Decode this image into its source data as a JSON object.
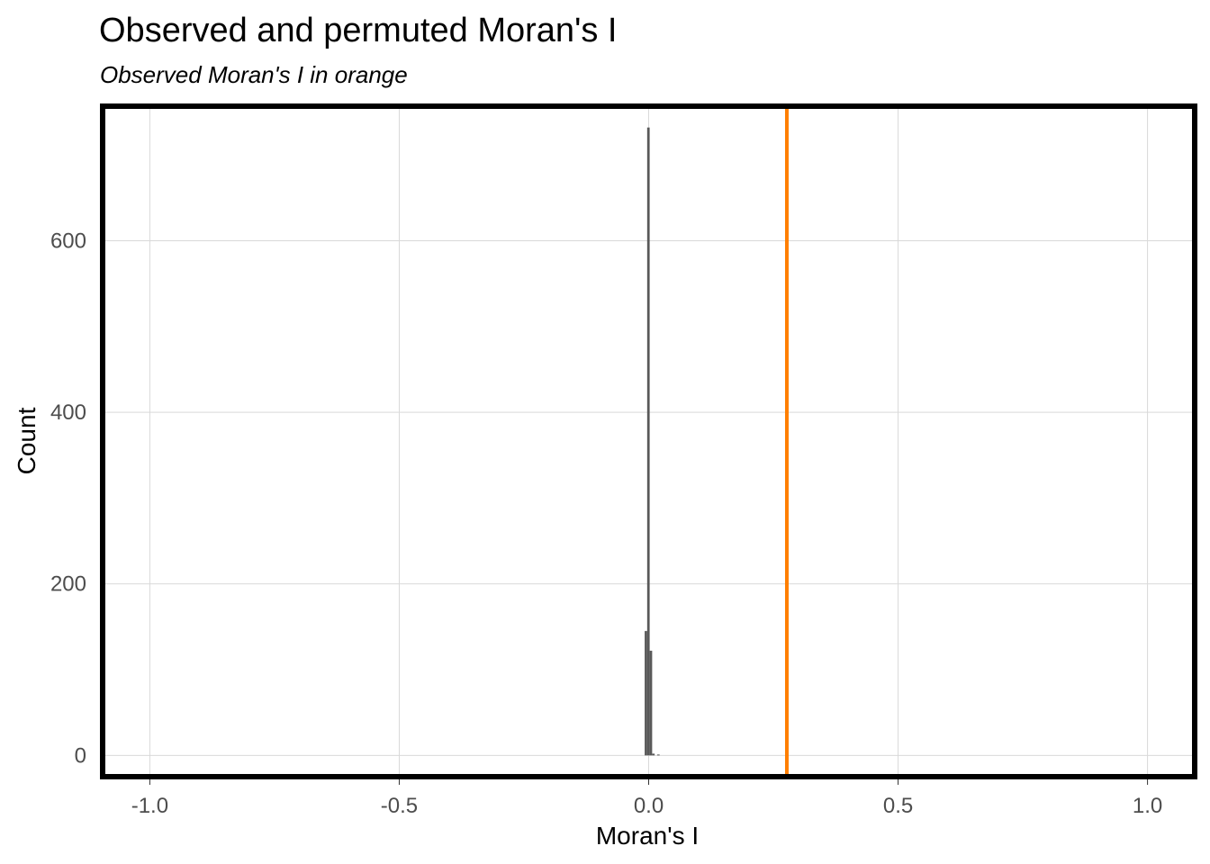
{
  "chart_data": {
    "type": "bar",
    "title": "Observed and permuted Moran's I",
    "subtitle": "Observed Moran's I in orange",
    "xlabel": "Moran's I",
    "ylabel": "Count",
    "xlim": [
      -1.1,
      1.1
    ],
    "ylim": [
      -28,
      760
    ],
    "x_ticks": [
      -1.0,
      -0.5,
      0.0,
      0.5,
      1.0
    ],
    "x_tick_labels": [
      "-1.0",
      "-0.5",
      "0.0",
      "0.5",
      "1.0"
    ],
    "y_ticks": [
      0,
      200,
      400,
      600
    ],
    "y_tick_labels": [
      "0",
      "200",
      "400",
      "600"
    ],
    "grid": true,
    "histogram_bins": [
      {
        "x0": -0.008,
        "x1": -0.003,
        "count": 145
      },
      {
        "x0": -0.003,
        "x1": 0.002,
        "count": 732
      },
      {
        "x0": 0.002,
        "x1": 0.007,
        "count": 122
      },
      {
        "x0": 0.007,
        "x1": 0.012,
        "count": 2
      },
      {
        "x0": 0.012,
        "x1": 0.017,
        "count": 0
      },
      {
        "x0": 0.017,
        "x1": 0.022,
        "count": 1
      }
    ],
    "observed_value": 0.277,
    "colors": {
      "bar": "#595959",
      "observed_line": "#FF7F00",
      "grid": "#d9d9d9",
      "panel_border": "#000000"
    }
  }
}
